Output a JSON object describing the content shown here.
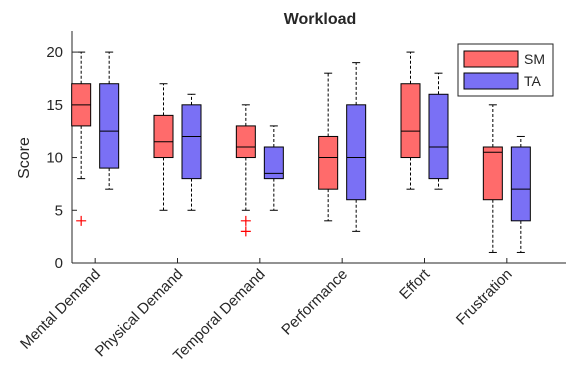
{
  "chart_data": {
    "type": "boxplot",
    "title": "Workload",
    "ylabel": "Score",
    "xlabel": "",
    "ylim": [
      0,
      22
    ],
    "yticks": [
      0,
      5,
      10,
      15,
      20
    ],
    "categories": [
      "Mental Demand",
      "Physical Demand",
      "Temporal Demand",
      "Performance",
      "Effort",
      "Frustration"
    ],
    "legend_position": "top-right",
    "series": [
      {
        "name": "SM",
        "color": "#ff6b6b",
        "boxes": [
          {
            "whisker_low": 8,
            "q1": 13,
            "median": 15,
            "q3": 17,
            "whisker_high": 20,
            "outliers": [
              4
            ]
          },
          {
            "whisker_low": 5,
            "q1": 10,
            "median": 11.5,
            "q3": 14,
            "whisker_high": 17,
            "outliers": []
          },
          {
            "whisker_low": 5,
            "q1": 10,
            "median": 11,
            "q3": 13,
            "whisker_high": 15,
            "outliers": [
              3,
              4
            ]
          },
          {
            "whisker_low": 4,
            "q1": 7,
            "median": 10,
            "q3": 12,
            "whisker_high": 18,
            "outliers": []
          },
          {
            "whisker_low": 7,
            "q1": 10,
            "median": 12.5,
            "q3": 17,
            "whisker_high": 20,
            "outliers": []
          },
          {
            "whisker_low": 1,
            "q1": 6,
            "median": 10.5,
            "q3": 11,
            "whisker_high": 15,
            "outliers": []
          }
        ]
      },
      {
        "name": "TA",
        "color": "#7a70f5",
        "boxes": [
          {
            "whisker_low": 7,
            "q1": 9,
            "median": 12.5,
            "q3": 17,
            "whisker_high": 20,
            "outliers": []
          },
          {
            "whisker_low": 5,
            "q1": 8,
            "median": 12,
            "q3": 15,
            "whisker_high": 16,
            "outliers": []
          },
          {
            "whisker_low": 5,
            "q1": 8,
            "median": 8.5,
            "q3": 11,
            "whisker_high": 13,
            "outliers": []
          },
          {
            "whisker_low": 3,
            "q1": 6,
            "median": 10,
            "q3": 15,
            "whisker_high": 19,
            "outliers": []
          },
          {
            "whisker_low": 7,
            "q1": 8,
            "median": 11,
            "q3": 16,
            "whisker_high": 18,
            "outliers": []
          },
          {
            "whisker_low": 1,
            "q1": 4,
            "median": 7,
            "q3": 11,
            "whisker_high": 12,
            "outliers": []
          }
        ]
      }
    ]
  }
}
